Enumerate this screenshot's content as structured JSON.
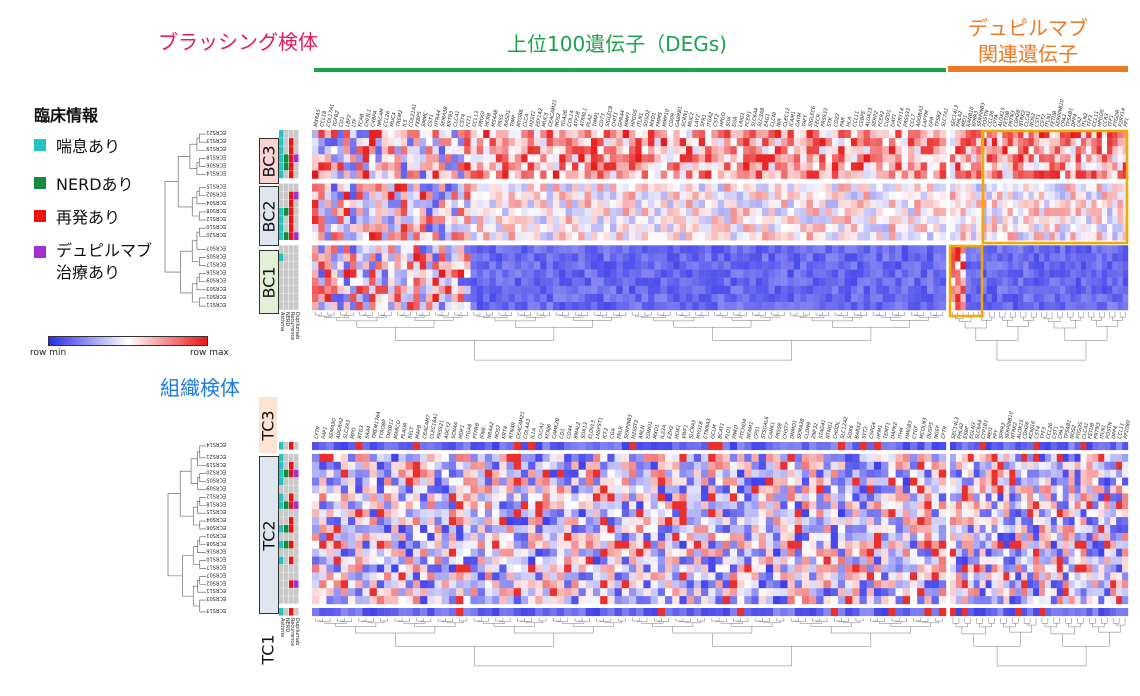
{
  "headers": {
    "brushing": "ブラッシング検体",
    "degs": "上位100遺伝子（DEGs)",
    "dupi_line1": "デュピルマブ",
    "dupi_line2": "関連遺伝子",
    "tissue": "組織検体"
  },
  "colors": {
    "brushing_header": "#e8195a",
    "degs_header": "#1aa34a",
    "degs_bar": "#1aa34a",
    "dupi_header": "#ee7a26",
    "dupi_bar": "#ee7a26",
    "tissue_header": "#1a7ae0",
    "highlight_box": "#f2a900",
    "asthma": "#22c4c0",
    "nerd": "#148a3c",
    "recurrence": "#ee1111",
    "dupilumab": "#a52fd0",
    "heat_low": "#2a2ae8",
    "heat_mid": "#ffffff",
    "heat_high": "#e81818"
  },
  "legend": {
    "title": "臨床情報",
    "items": [
      {
        "label": "喘息あり",
        "color": "#22c4c0"
      },
      {
        "label": "NERDあり",
        "color": "#148a3c"
      },
      {
        "label": "再発あり",
        "color": "#ee1111"
      },
      {
        "label": "デュピルマブ\n治療あり",
        "color": "#a52fd0"
      }
    ],
    "colorbar_min": "row min",
    "colorbar_max": "row max"
  },
  "clinical_columns": [
    "Asthma",
    "NERD",
    "Recurrence",
    "Dupilumab"
  ],
  "chart_data": [
    {
      "type": "heatmap",
      "panel": "brushing",
      "title": "",
      "column_groups": [
        "上位100遺伝子（DEGs)",
        "デュピルマブ関連遺伝子"
      ],
      "row_clusters": [
        {
          "name": "BC3",
          "samples": [
            "ECRS21",
            "ECRS13",
            "ECRS19",
            "ECRS18",
            "ECRS06",
            "ECRS14"
          ],
          "clinical": [
            [
              1,
              0,
              0,
              0
            ],
            [
              1,
              0,
              1,
              0
            ],
            [
              1,
              0,
              1,
              0
            ],
            [
              1,
              1,
              1,
              1
            ],
            [
              1,
              1,
              1,
              0
            ],
            [
              1,
              0,
              1,
              0
            ]
          ]
        },
        {
          "name": "BC2",
          "samples": [
            "ECRS15",
            "ECRS02",
            "ECRS04",
            "ECRS08",
            "ECRS12",
            "ECRS10",
            "ECRS20"
          ],
          "clinical": [
            [
              0,
              0,
              0,
              0
            ],
            [
              0,
              0,
              1,
              1
            ],
            [
              0,
              0,
              1,
              0
            ],
            [
              1,
              1,
              1,
              0
            ],
            [
              1,
              0,
              1,
              0
            ],
            [
              1,
              0,
              1,
              0
            ],
            [
              1,
              1,
              1,
              1
            ]
          ]
        },
        {
          "name": "BC1",
          "samples": [
            "ECRS07",
            "ECRS05",
            "ECRS17",
            "ECRS16",
            "ECRS09",
            "ECRS03",
            "ECRS01",
            "ECRS11"
          ],
          "clinical": [
            [
              0,
              0,
              0,
              0
            ],
            [
              1,
              0,
              0,
              0
            ],
            [
              0,
              0,
              0,
              0
            ],
            [
              0,
              0,
              0,
              0
            ],
            [
              0,
              0,
              0,
              0
            ],
            [
              0,
              0,
              0,
              0
            ],
            [
              0,
              0,
              0,
              0
            ],
            [
              0,
              0,
              0,
              0
            ]
          ]
        }
      ],
      "genes_degs": [
        "MXRA5",
        "CCL18",
        "COL17A1",
        "TGFB2",
        "CD1",
        "LBP2",
        "LTF",
        "FCAB",
        "CHI3L1",
        "C4BPA",
        "NRCAM",
        "CCL26",
        "MUC4",
        "TREM2",
        "IL5",
        "COL21A1",
        "FKBP5",
        "SMMC",
        "CST1",
        "HTRA4",
        "SEMA3B",
        "KRT83",
        "CLCA1",
        "CST4",
        "FLT1",
        "CCL13",
        "PROGI",
        "HCRB",
        "MS4A8",
        "PRSS",
        "RASD1",
        "TIMP",
        "MYD88",
        "CLCA",
        "H2ST1",
        "EEF1A2",
        "MUC5",
        "CEACAM21",
        "NOS2",
        "TGA2B",
        "COL14",
        "ATP1B",
        "ATRNL1",
        "PLA2",
        "TIMP1",
        "CD73",
        "SIGLEC8",
        "CHIT1",
        "GPR44",
        "MMP7",
        "HPGDS",
        "ITLN1",
        "SUSD2",
        "MXD1",
        "FMMS",
        "MMP10",
        "CD09",
        "GABRB1",
        "SCRN1",
        "MUC2",
        "LAY2",
        "SFR1",
        "ITGA2",
        "CST2",
        "HPGD",
        "SOX",
        "EGR",
        "LRIG1",
        "FCER1",
        "SLC6A4",
        "SLC3A8",
        "EAG1",
        "CLCNI",
        "NIX",
        "CLEC12",
        "ICAM1",
        "GATM",
        "TAFY",
        "SIGLEC6",
        "FECR",
        "PRSS33",
        "STK",
        "CD22",
        "PAR",
        "HLA",
        "CCL11",
        "CEBPE",
        "ALOX15",
        "SERP2",
        "FCER2",
        "CUZD1",
        "GAT1",
        "P2RY14",
        "PRSS33",
        "CCL7",
        "ADORA3",
        "LAPTM",
        "GPR",
        "TPSB2",
        "SLC7A1"
      ],
      "genes_dupilumab": [
        "SEC14L3",
        "PHLA2",
        "MEI1",
        "RANB10",
        "SPRR3",
        "SERPINB3",
        "POSTN",
        "CCL26",
        "CPTA",
        "ALOX15",
        "FETUB",
        "PRTN3",
        "CDH26",
        "NTRK2",
        "CLCA1",
        "NOS2",
        "CST1",
        "CST2",
        "ITLN1",
        "FETUB",
        "SERPINB10",
        "CPA3",
        "TPSAB1",
        "DPP4",
        "CA2",
        "ITLN2",
        "TFF3",
        "CCL11",
        "HPGDS",
        "CCR3",
        "TFF1",
        "PTGDR",
        "P2RY14",
        "PP1"
      ],
      "value_scale": [
        "row min",
        "row max"
      ]
    },
    {
      "type": "heatmap",
      "panel": "tissue",
      "title": "",
      "column_groups": [
        "上位100遺伝子（DEGs)",
        "デュピルマブ関連遺伝子"
      ],
      "row_clusters": [
        {
          "name": "TC3",
          "samples": [
            "ECRS14"
          ],
          "clinical": [
            [
              1,
              0,
              1,
              0
            ]
          ]
        },
        {
          "name": "TC2",
          "samples": [
            "ECRS21",
            "ECRS19",
            "ECRS20",
            "ECRS05",
            "ECRS09",
            "ECRS12",
            "ECRS18",
            "ECRS15",
            "ECRS04",
            "ECRS06",
            "ECRS01",
            "ECRS08",
            "ECRS16",
            "ECRS10",
            "ECRS17",
            "ECRS07",
            "ECRS02",
            "ECRS11",
            "ECRS03"
          ],
          "clinical": [
            [
              1,
              0,
              0,
              0
            ],
            [
              1,
              0,
              1,
              0
            ],
            [
              1,
              1,
              1,
              1
            ],
            [
              1,
              0,
              0,
              0
            ],
            [
              0,
              0,
              0,
              0
            ],
            [
              1,
              0,
              1,
              0
            ],
            [
              1,
              1,
              1,
              1
            ],
            [
              0,
              0,
              0,
              0
            ],
            [
              0,
              0,
              1,
              0
            ],
            [
              1,
              1,
              1,
              0
            ],
            [
              0,
              0,
              0,
              0
            ],
            [
              1,
              1,
              1,
              0
            ],
            [
              0,
              0,
              0,
              0
            ],
            [
              1,
              0,
              1,
              0
            ],
            [
              0,
              0,
              0,
              0
            ],
            [
              0,
              0,
              0,
              0
            ],
            [
              0,
              0,
              1,
              1
            ],
            [
              0,
              0,
              0,
              0
            ],
            [
              0,
              0,
              0,
              0
            ]
          ]
        },
        {
          "name": "TC1",
          "samples": [
            "ECRS13"
          ],
          "clinical": [
            [
              1,
              0,
              1,
              0
            ]
          ]
        }
      ],
      "genes_degs": [
        "CFTR",
        "FAP1",
        "SEMA3G",
        "ADGRA2",
        "SLC2A3",
        "MPO",
        "BTG3",
        "SAA4",
        "TMEM176A",
        "TYROBP",
        "TMSB11",
        "MARCO",
        "PLAUR",
        "RELT",
        "MAFB",
        "CEACAM7",
        "CLEC18A1",
        "PRSS21",
        "ADCY2",
        "SCN4A",
        "MDF1",
        "ITGA8",
        "PTPRB",
        "IFN8",
        "NR4A2",
        "NOS2",
        "KRT4",
        "RTN4R",
        "CEACAM21",
        "COLAA3",
        "IL1A",
        "CLCA1",
        "KCNJ6",
        "CAMK2B",
        "CD1",
        "CD44",
        "BMAL2",
        "SOX13",
        "ELOVL5",
        "LNSFST1",
        "ICF2",
        "CGA",
        "PRLR",
        "SERPINB3",
        "H2SST2",
        "ANLN",
        "EDNO1",
        "MXD1",
        "IL23A",
        "EZH2",
        "HOX1",
        "VWF1",
        "SLC9A5",
        "MYO1B",
        "CTNNA3",
        "GCLM",
        "BCAT1",
        "PLD1",
        "PNKD",
        "PTCHD4",
        "NFAM1",
        "CPS1",
        "STSGAL6",
        "CANK1",
        "PRSS8",
        "CHST7",
        "DNMD1",
        "SEMA3B",
        "CLDN9",
        "ZNF32",
        "STAG41",
        "NTNG1",
        "CHODL",
        "SLC12A2",
        "SOX6",
        "BARX2",
        "SYT2",
        "CSPG4",
        "HFM1",
        "TEMT1",
        "DAPK2",
        "ITH4",
        "HMGB3",
        "CTGF",
        "MCOLN3",
        "DUSP5",
        "NGEF"
      ],
      "genes_dupilumab": [
        "SEC14L3",
        "PHLA2",
        "ESBP",
        "EGLN3",
        "SLC6A4",
        "CYP1B1",
        "MEI1",
        "PPY",
        "SPRR3",
        "SERPINB10",
        "NTRK2",
        "ALOX15",
        "CDH26",
        "KCNJ16",
        "CST4",
        "TFF3",
        "CCL26",
        "CST1",
        "CPA3",
        "TPSAB1",
        "NOS2",
        "PTGDS",
        "CLCA1",
        "FETUB",
        "PRTN3",
        "ITLN1",
        "POSTN",
        "DPP4",
        "CCL11",
        "PP1080"
      ],
      "value_scale": [
        "row min",
        "row max"
      ]
    }
  ]
}
